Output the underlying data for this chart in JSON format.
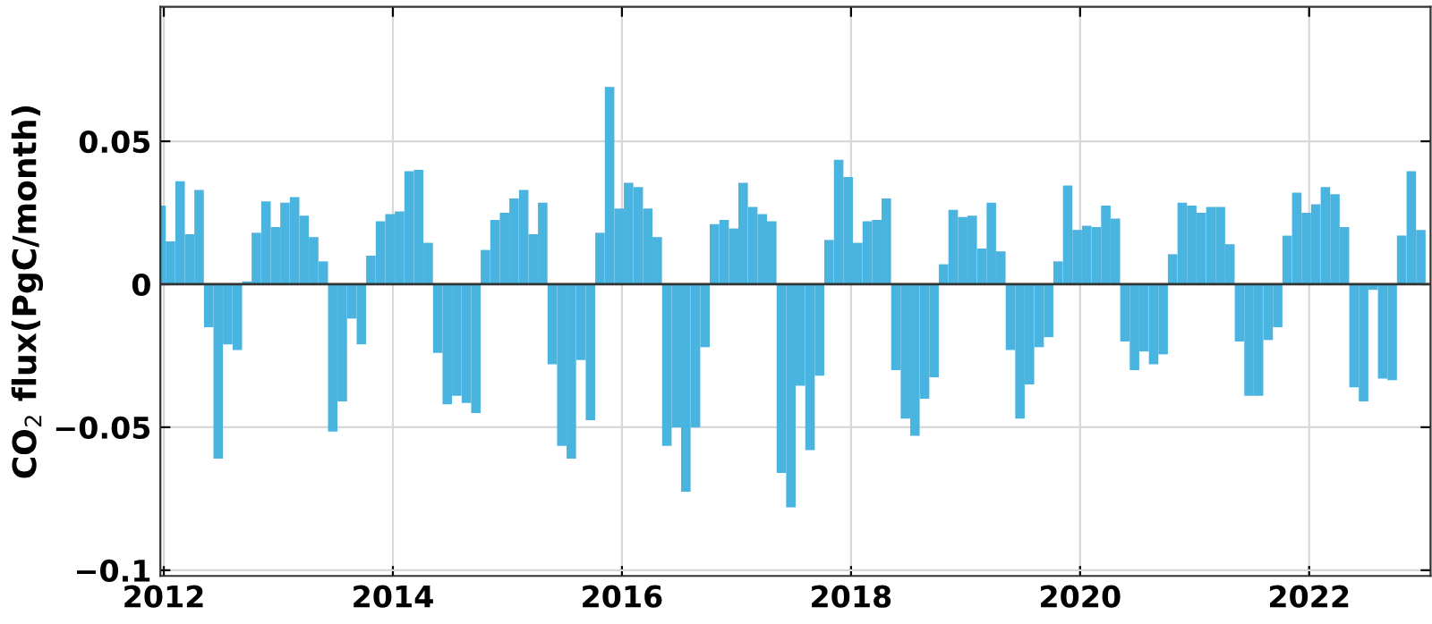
{
  "chart_data": {
    "type": "bar",
    "ylabel": "CO$_{2}$ flux(PgC/month)",
    "x": [
      2011.975,
      2012.058,
      2012.142,
      2012.225,
      2012.308,
      2012.392,
      2012.475,
      2012.558,
      2012.642,
      2012.725,
      2012.808,
      2012.892,
      2012.975,
      2013.058,
      2013.142,
      2013.225,
      2013.308,
      2013.392,
      2013.475,
      2013.558,
      2013.642,
      2013.725,
      2013.808,
      2013.892,
      2013.975,
      2014.058,
      2014.142,
      2014.225,
      2014.308,
      2014.392,
      2014.475,
      2014.558,
      2014.642,
      2014.725,
      2014.808,
      2014.892,
      2014.975,
      2015.058,
      2015.142,
      2015.225,
      2015.308,
      2015.392,
      2015.475,
      2015.558,
      2015.642,
      2015.725,
      2015.808,
      2015.892,
      2015.975,
      2016.058,
      2016.142,
      2016.225,
      2016.308,
      2016.392,
      2016.475,
      2016.558,
      2016.642,
      2016.725,
      2016.808,
      2016.892,
      2016.975,
      2017.058,
      2017.142,
      2017.225,
      2017.308,
      2017.392,
      2017.475,
      2017.558,
      2017.642,
      2017.725,
      2017.808,
      2017.892,
      2017.975,
      2018.058,
      2018.142,
      2018.225,
      2018.308,
      2018.392,
      2018.475,
      2018.558,
      2018.642,
      2018.725,
      2018.808,
      2018.892,
      2018.975,
      2019.058,
      2019.142,
      2019.225,
      2019.308,
      2019.392,
      2019.475,
      2019.558,
      2019.642,
      2019.725,
      2019.808,
      2019.892,
      2019.975,
      2020.058,
      2020.142,
      2020.225,
      2020.308,
      2020.392,
      2020.475,
      2020.558,
      2020.642,
      2020.725,
      2020.808,
      2020.892,
      2020.975,
      2021.058,
      2021.142,
      2021.225,
      2021.308,
      2021.392,
      2021.475,
      2021.558,
      2021.642,
      2021.725,
      2021.808,
      2021.892,
      2021.975,
      2022.058,
      2022.142,
      2022.225,
      2022.308,
      2022.392,
      2022.475,
      2022.558,
      2022.642,
      2022.725,
      2022.808,
      2022.892,
      2022.975
    ],
    "values": [
      0.0275,
      0.015,
      0.036,
      0.0175,
      0.033,
      -0.015,
      -0.061,
      -0.021,
      -0.023,
      0.001,
      0.018,
      0.029,
      0.02,
      0.0285,
      0.0305,
      0.024,
      0.0165,
      0.008,
      -0.0515,
      -0.041,
      -0.012,
      -0.021,
      0.01,
      0.022,
      0.0245,
      0.0255,
      0.0395,
      0.04,
      0.0145,
      -0.024,
      -0.042,
      -0.039,
      -0.0415,
      -0.045,
      0.012,
      0.0225,
      0.025,
      0.03,
      0.033,
      0.0175,
      0.0285,
      -0.028,
      -0.0565,
      -0.061,
      -0.0265,
      -0.0475,
      0.018,
      0.069,
      0.0265,
      0.0355,
      0.034,
      0.0265,
      0.0165,
      -0.0565,
      -0.05,
      -0.0725,
      -0.05,
      -0.022,
      0.021,
      0.0225,
      0.0195,
      0.0355,
      0.027,
      0.0245,
      0.022,
      -0.066,
      -0.078,
      -0.0355,
      -0.058,
      -0.032,
      0.0155,
      0.0435,
      0.0375,
      0.0145,
      0.022,
      0.0225,
      0.03,
      -0.03,
      -0.047,
      -0.053,
      -0.04,
      -0.0325,
      0.007,
      0.026,
      0.0235,
      0.024,
      0.0125,
      0.0285,
      0.0115,
      -0.023,
      -0.047,
      -0.035,
      -0.022,
      -0.0185,
      0.008,
      0.0345,
      0.019,
      0.0205,
      0.02,
      0.0275,
      0.023,
      -0.02,
      -0.03,
      -0.0235,
      -0.028,
      -0.0245,
      0.0105,
      0.0285,
      0.0275,
      0.025,
      0.027,
      0.027,
      0.014,
      -0.02,
      -0.039,
      -0.039,
      -0.0195,
      -0.015,
      0.017,
      0.032,
      0.025,
      0.028,
      0.034,
      0.0315,
      0.02,
      -0.036,
      -0.041,
      -0.002,
      -0.033,
      -0.0335,
      0.017,
      0.0395,
      0.019
    ],
    "color": "#4ab4e0",
    "xlim": [
      2011.97,
      2023.06
    ],
    "xticks": [
      2012,
      2014,
      2016,
      2018,
      2020,
      2022
    ],
    "ylim": [
      -0.102,
      0.097
    ],
    "yticks": [
      {
        "value": -0.1,
        "label": "−0.1"
      },
      {
        "value": -0.05,
        "label": "−0.05"
      },
      {
        "value": 0,
        "label": "0"
      },
      {
        "value": 0.05,
        "label": "0.05"
      }
    ],
    "grid": true
  }
}
